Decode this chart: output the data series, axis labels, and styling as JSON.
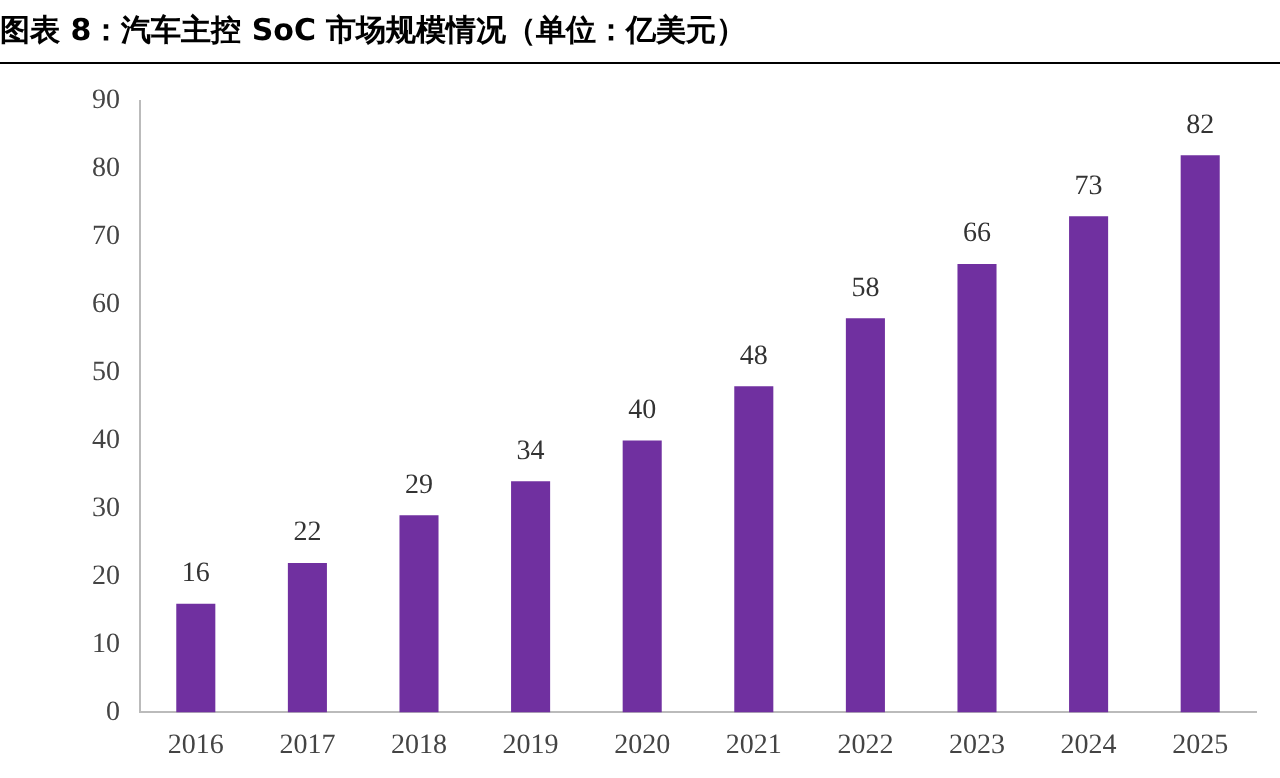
{
  "chart_data": {
    "type": "bar",
    "title": "图表 8：汽车主控 SoC 市场规模情况（单位：亿美元）",
    "categories": [
      "2016",
      "2017",
      "2018",
      "2019",
      "2020",
      "2021",
      "2022",
      "2023",
      "2024",
      "2025"
    ],
    "values": [
      16,
      22,
      29,
      34,
      40,
      48,
      58,
      66,
      73,
      82
    ],
    "color": "#7030a0",
    "ylim": [
      0,
      90
    ],
    "yticks": [
      0,
      10,
      20,
      30,
      40,
      50,
      60,
      70,
      80,
      90
    ],
    "grid": false,
    "legend": false,
    "data_labels": true
  }
}
